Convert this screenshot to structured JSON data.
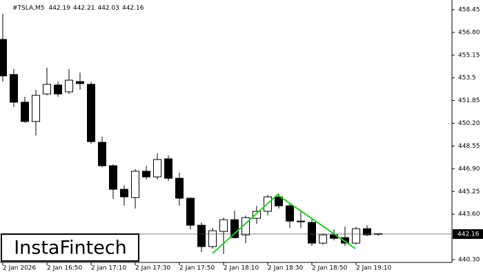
{
  "chart_data": {
    "type": "candlestick",
    "title": "#TSLA,M5",
    "categories": [
      "2 Jan 2026",
      null,
      null,
      null,
      "2 Jan 16:50",
      null,
      null,
      null,
      "2 Jan 17:10",
      null,
      null,
      null,
      "2 Jan 17:30",
      null,
      null,
      null,
      "2 Jan 17:50",
      null,
      null,
      null,
      "2 Jan 18:10",
      null,
      null,
      null,
      "2 Jan 18:30",
      null,
      null,
      null,
      "2 Jan 18:50",
      null,
      null,
      null,
      "2 Jan 19:10",
      null,
      null
    ],
    "open": [
      456.29,
      453.74,
      451.73,
      450.33,
      452.33,
      452.98,
      452.48,
      453.23,
      453.03,
      448.82,
      447.12,
      445.41,
      444.81,
      446.72,
      446.31,
      447.62,
      446.21,
      444.76,
      442.8,
      441.25,
      442.35,
      443.2,
      442.1,
      443.3,
      443.81,
      444.86,
      444.21,
      443.1,
      443.0,
      441.5,
      442.1,
      441.9,
      441.5,
      442.55,
      442.19
    ],
    "high": [
      458.15,
      454.14,
      452.13,
      452.63,
      454.24,
      453.23,
      454.14,
      453.89,
      453.23,
      449.22,
      447.22,
      445.71,
      446.87,
      447.12,
      448.02,
      447.87,
      446.61,
      444.81,
      443.0,
      442.6,
      443.35,
      443.86,
      443.51,
      444.21,
      445.01,
      445.11,
      444.36,
      443.81,
      443.2,
      442.2,
      442.5,
      442.7,
      442.7,
      442.8,
      442.21
    ],
    "low": [
      453.23,
      451.38,
      450.23,
      449.32,
      452.23,
      452.13,
      452.33,
      452.63,
      448.72,
      447.02,
      444.71,
      444.21,
      444.01,
      446.11,
      446.11,
      446.01,
      444.21,
      442.5,
      440.85,
      441.1,
      440.7,
      441.85,
      441.5,
      442.9,
      443.51,
      444.01,
      442.6,
      442.6,
      441.3,
      441.4,
      441.7,
      441.3,
      441.4,
      442.0,
      442.03
    ],
    "close": [
      453.64,
      451.73,
      450.33,
      452.23,
      453.03,
      452.33,
      453.33,
      453.08,
      448.87,
      447.12,
      445.41,
      444.86,
      446.72,
      446.31,
      447.57,
      446.21,
      444.76,
      442.8,
      441.25,
      442.4,
      443.2,
      441.9,
      443.35,
      443.81,
      444.86,
      444.21,
      443.1,
      443.05,
      441.5,
      442.1,
      441.85,
      441.5,
      442.55,
      442.1,
      442.16
    ],
    "up_color": "#ffffff",
    "down_color": "#000000",
    "ylim": [
      440.1,
      459.15
    ],
    "yticks": [
      458.45,
      {
        "value": 456.8,
        "label": "456.80"
      },
      455.15,
      453.5,
      451.85,
      {
        "value": 450.2,
        "label": "450.20"
      },
      448.55,
      {
        "value": 446.9,
        "label": "446.90"
      },
      445.25,
      {
        "value": 443.6,
        "label": "443.60"
      },
      441.95,
      {
        "value": 440.3,
        "label": "440.30"
      }
    ]
  },
  "logo": "InstaFintech"
}
